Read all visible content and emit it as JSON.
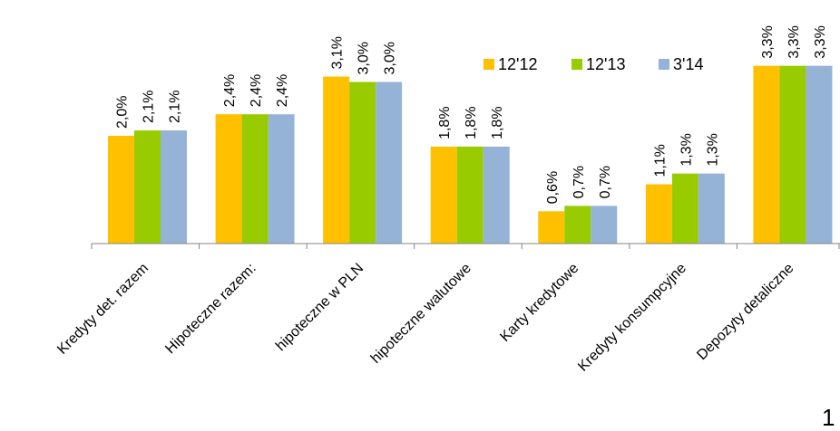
{
  "chart_data": {
    "type": "bar",
    "title": "",
    "xlabel": "",
    "ylabel": "",
    "ylim": [
      0,
      3.5
    ],
    "grid": false,
    "legend_position": "top-right",
    "categories": [
      "Kredyty det. razem",
      "Hipoteczne razem:",
      "hipoteczne w PLN",
      "hipoteczne walutowe",
      "Karty kredytowe",
      "Kredyty konsumpcyjne",
      "Depozyty detaliczne"
    ],
    "series": [
      {
        "name": "12'12",
        "color": "#FFC000",
        "values": [
          2.0,
          2.4,
          3.1,
          1.8,
          0.6,
          1.1,
          3.3
        ],
        "labels": [
          "2,0%",
          "2,4%",
          "3,1%",
          "1,8%",
          "0,6%",
          "1,1%",
          "3,3%"
        ]
      },
      {
        "name": "12'13",
        "color": "#99CC00",
        "values": [
          2.1,
          2.4,
          3.0,
          1.8,
          0.7,
          1.3,
          3.3
        ],
        "labels": [
          "2,1%",
          "2,4%",
          "3,0%",
          "1,8%",
          "0,7%",
          "1,3%",
          "3,3%"
        ]
      },
      {
        "name": "3'14",
        "color": "#95B3D7",
        "values": [
          2.1,
          2.4,
          3.0,
          1.8,
          0.7,
          1.3,
          3.3
        ],
        "labels": [
          "2,1%",
          "2,4%",
          "3,0%",
          "1,8%",
          "0,7%",
          "1,3%",
          "3,3%"
        ]
      }
    ]
  },
  "page_number": "1"
}
